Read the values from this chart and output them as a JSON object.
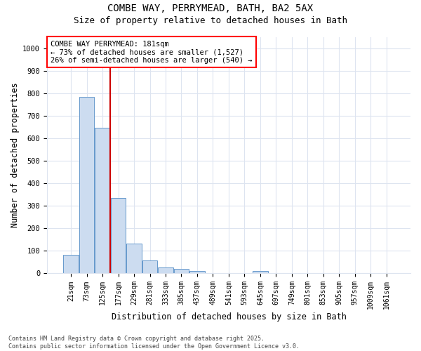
{
  "title_line1": "COMBE WAY, PERRYMEAD, BATH, BA2 5AX",
  "title_line2": "Size of property relative to detached houses in Bath",
  "xlabel": "Distribution of detached houses by size in Bath",
  "ylabel": "Number of detached properties",
  "categories": [
    "21sqm",
    "73sqm",
    "125sqm",
    "177sqm",
    "229sqm",
    "281sqm",
    "333sqm",
    "385sqm",
    "437sqm",
    "489sqm",
    "541sqm",
    "593sqm",
    "645sqm",
    "697sqm",
    "749sqm",
    "801sqm",
    "853sqm",
    "905sqm",
    "957sqm",
    "1009sqm",
    "1061sqm"
  ],
  "values": [
    83,
    783,
    648,
    335,
    133,
    58,
    25,
    20,
    11,
    0,
    0,
    0,
    10,
    0,
    0,
    0,
    0,
    0,
    0,
    0,
    0
  ],
  "bar_color": "#ccdcf0",
  "bar_edge_color": "#6699cc",
  "annotation_box_text": "COMBE WAY PERRYMEAD: 181sqm\n← 73% of detached houses are smaller (1,527)\n26% of semi-detached houses are larger (540) →",
  "vline_color": "#cc0000",
  "vline_x_index": 3.0,
  "ylim": [
    0,
    1050
  ],
  "yticks": [
    0,
    100,
    200,
    300,
    400,
    500,
    600,
    700,
    800,
    900,
    1000
  ],
  "footnote": "Contains HM Land Registry data © Crown copyright and database right 2025.\nContains public sector information licensed under the Open Government Licence v3.0.",
  "plot_bg_color": "#ffffff",
  "fig_bg_color": "#ffffff",
  "grid_color": "#dde4f0",
  "title_fontsize": 10,
  "subtitle_fontsize": 9,
  "tick_fontsize": 7,
  "label_fontsize": 8.5,
  "annot_fontsize": 7.5,
  "footnote_fontsize": 6
}
